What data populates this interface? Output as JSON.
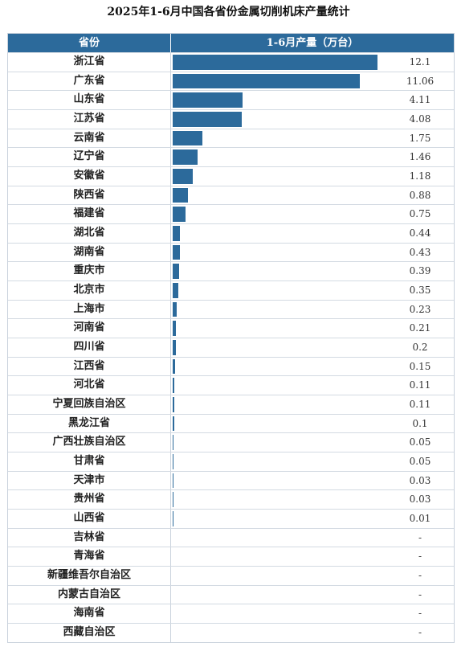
{
  "title": "2025年1-6月中国各省份金属切削机床产量统计",
  "header": {
    "col1": "省份",
    "col2": "1-6月产量（万台）"
  },
  "colors": {
    "bar": "#2c6a9b",
    "header_bg": "#2c6a9b"
  },
  "chart_data": {
    "type": "bar",
    "orientation": "horizontal",
    "title": "2025年1-6月中国各省份金属切削机床产量统计",
    "xlabel": "1-6月产量（万台）",
    "ylabel": "省份",
    "xlim": [
      0,
      12.1
    ],
    "categories": [
      "浙江省",
      "广东省",
      "山东省",
      "江苏省",
      "云南省",
      "辽宁省",
      "安徽省",
      "陕西省",
      "福建省",
      "湖北省",
      "湖南省",
      "重庆市",
      "北京市",
      "上海市",
      "河南省",
      "四川省",
      "江西省",
      "河北省",
      "宁夏回族自治区",
      "黑龙江省",
      "广西壮族自治区",
      "甘肃省",
      "天津市",
      "贵州省",
      "山西省",
      "吉林省",
      "青海省",
      "新疆维吾尔自治区",
      "内蒙古自治区",
      "海南省",
      "西藏自治区"
    ],
    "values": [
      12.1,
      11.06,
      4.11,
      4.08,
      1.75,
      1.46,
      1.18,
      0.88,
      0.75,
      0.44,
      0.43,
      0.39,
      0.35,
      0.23,
      0.21,
      0.2,
      0.15,
      0.11,
      0.11,
      0.1,
      0.05,
      0.05,
      0.03,
      0.03,
      0.01,
      null,
      null,
      null,
      null,
      null,
      null
    ],
    "value_labels": [
      "12.1",
      "11.06",
      "4.11",
      "4.08",
      "1.75",
      "1.46",
      "1.18",
      "0.88",
      "0.75",
      "0.44",
      "0.43",
      "0.39",
      "0.35",
      "0.23",
      "0.21",
      "0.2",
      "0.15",
      "0.11",
      "0.11",
      "0.1",
      "0.05",
      "0.05",
      "0.03",
      "0.03",
      "0.01",
      "-",
      "-",
      "-",
      "-",
      "-",
      "-"
    ]
  }
}
